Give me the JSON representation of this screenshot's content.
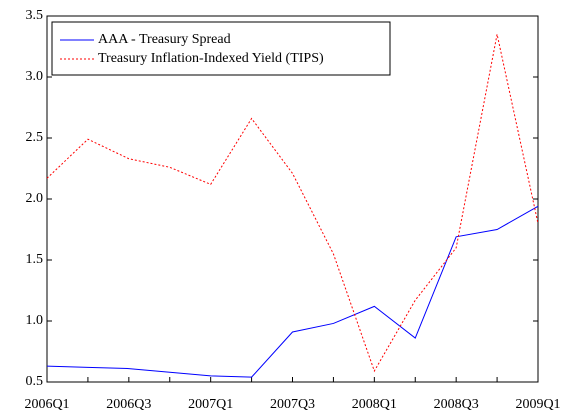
{
  "chart_data": {
    "type": "line",
    "categories": [
      "2006Q1",
      null,
      "2006Q3",
      null,
      "2007Q1",
      null,
      "2007Q3",
      null,
      "2008Q1",
      null,
      "2008Q3",
      null,
      "2009Q1"
    ],
    "series": [
      {
        "name": "AAA - Treasury Spread",
        "color": "#0000ff",
        "dash": false,
        "values": [
          0.63,
          0.62,
          0.61,
          0.58,
          0.55,
          0.54,
          0.91,
          0.98,
          1.12,
          0.86,
          1.69,
          1.75,
          1.94
        ]
      },
      {
        "name": "Treasury Inflation-Indexed Yield (TIPS)",
        "color": "#ff0000",
        "dash": true,
        "values": [
          2.17,
          2.49,
          2.33,
          2.26,
          2.12,
          2.66,
          2.21,
          1.55,
          0.59,
          1.17,
          1.6,
          3.35,
          1.8
        ]
      }
    ],
    "ylim": [
      0.5,
      3.5
    ],
    "yticks": [
      0.5,
      {
        "value": 1,
        "label": "1.0"
      },
      1.5,
      {
        "value": 2,
        "label": "2.0"
      },
      2.5,
      {
        "value": 3,
        "label": "3.0"
      },
      3.5
    ],
    "legend": "upper-left"
  }
}
